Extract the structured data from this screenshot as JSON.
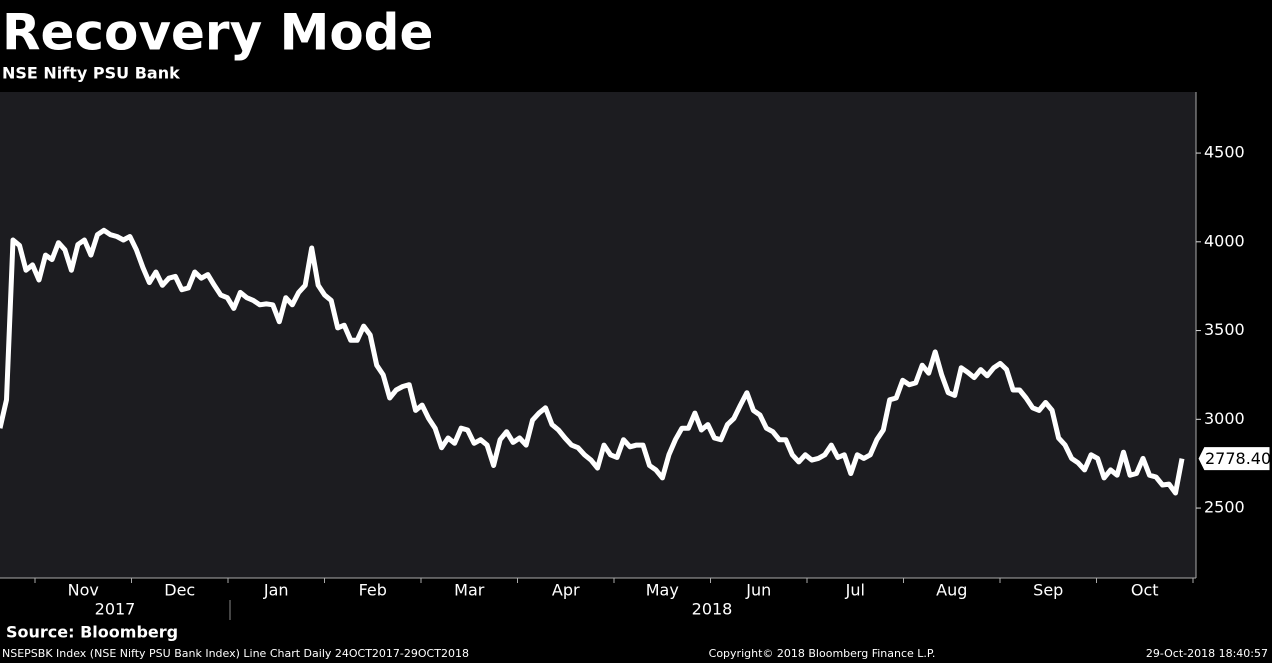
{
  "chart_data": {
    "type": "line",
    "title": "Recovery Mode",
    "subtitle": "NSE Nifty PSU Bank",
    "source": "Source: Bloomberg",
    "footer_left": "NSEPSBK Index (NSE Nifty PSU Bank Index) Line Chart  Daily 24OCT2017-29OCT2018",
    "footer_center": "Copyright© 2018 Bloomberg Finance L.P.",
    "footer_right": "29-Oct-2018 18:40:57",
    "months": [
      "Nov",
      "Dec",
      "Jan",
      "Feb",
      "Mar",
      "Apr",
      "May",
      "Jun",
      "Jul",
      "Aug",
      "Sep",
      "Oct"
    ],
    "years": [
      "2017",
      "2018"
    ],
    "color": "#ffffff",
    "ylim": [
      2106,
      4844
    ],
    "yticks": [
      2500,
      3000,
      3500,
      4000,
      4500
    ],
    "values": [
      2950,
      3110,
      4010,
      3980,
      3840,
      3870,
      3785,
      3925,
      3900,
      3995,
      3955,
      3840,
      3985,
      4010,
      3925,
      4040,
      4065,
      4040,
      4030,
      4010,
      4030,
      3955,
      3855,
      3770,
      3830,
      3755,
      3795,
      3805,
      3730,
      3740,
      3830,
      3795,
      3815,
      3755,
      3700,
      3685,
      3625,
      3715,
      3685,
      3670,
      3645,
      3650,
      3645,
      3550,
      3685,
      3645,
      3715,
      3755,
      3965,
      3755,
      3700,
      3670,
      3515,
      3530,
      3445,
      3445,
      3525,
      3475,
      3305,
      3250,
      3120,
      3165,
      3185,
      3195,
      3050,
      3080,
      3005,
      2950,
      2840,
      2895,
      2865,
      2950,
      2940,
      2865,
      2885,
      2855,
      2740,
      2885,
      2930,
      2870,
      2895,
      2855,
      2995,
      3035,
      3065,
      2970,
      2940,
      2895,
      2855,
      2840,
      2800,
      2770,
      2725,
      2855,
      2800,
      2785,
      2885,
      2845,
      2855,
      2855,
      2740,
      2715,
      2670,
      2800,
      2885,
      2950,
      2950,
      3035,
      2940,
      2970,
      2895,
      2885,
      2970,
      3005,
      3080,
      3150,
      3050,
      3025,
      2950,
      2930,
      2885,
      2885,
      2800,
      2760,
      2800,
      2770,
      2780,
      2800,
      2855,
      2785,
      2800,
      2695,
      2800,
      2780,
      2800,
      2885,
      2940,
      3110,
      3120,
      3220,
      3195,
      3205,
      3305,
      3260,
      3380,
      3250,
      3150,
      3135,
      3290,
      3265,
      3235,
      3280,
      3245,
      3290,
      3315,
      3280,
      3165,
      3165,
      3120,
      3065,
      3050,
      3095,
      3050,
      2895,
      2855,
      2780,
      2755,
      2715,
      2800,
      2780,
      2670,
      2715,
      2685,
      2815,
      2685,
      2695,
      2780,
      2685,
      2675,
      2630,
      2635,
      2585,
      2778.4
    ],
    "value_labels": [
      null,
      null,
      null,
      null,
      null,
      null,
      null,
      null,
      null,
      null,
      null,
      null,
      null,
      null,
      null,
      null,
      null,
      null,
      null,
      null,
      null,
      null,
      null,
      null,
      null,
      null,
      null,
      null,
      null,
      null,
      null,
      null,
      null,
      null,
      null,
      null,
      null,
      null,
      null,
      null,
      null,
      null,
      null,
      null,
      null,
      null,
      null,
      null,
      null,
      null,
      null,
      null,
      null,
      null,
      null,
      null,
      null,
      null,
      null,
      null,
      null,
      null,
      null,
      null,
      null,
      null,
      null,
      null,
      null,
      null,
      null,
      null,
      null,
      null,
      null,
      null,
      null,
      null,
      null,
      null,
      null,
      null,
      null,
      null,
      null,
      null,
      null,
      null,
      null,
      null,
      null,
      null,
      null,
      null,
      null,
      null,
      null,
      null,
      null,
      null,
      null,
      null,
      null,
      null,
      null,
      null,
      null,
      null,
      null,
      null,
      null,
      null,
      null,
      null,
      null,
      null,
      null,
      null,
      null,
      null,
      null,
      null,
      null,
      null,
      null,
      null,
      null,
      null,
      null,
      null,
      null,
      null,
      null,
      null,
      null,
      null,
      null,
      null,
      null,
      null,
      null,
      null,
      null,
      null,
      null,
      null,
      null,
      null,
      null,
      null,
      null,
      null,
      null,
      null,
      null,
      null,
      null,
      null,
      null,
      null,
      null,
      null,
      null,
      null,
      null,
      null,
      null,
      null,
      null,
      null,
      null,
      null,
      null,
      null,
      null,
      null,
      null,
      null,
      null,
      null,
      null,
      null,
      "2778.40"
    ]
  }
}
